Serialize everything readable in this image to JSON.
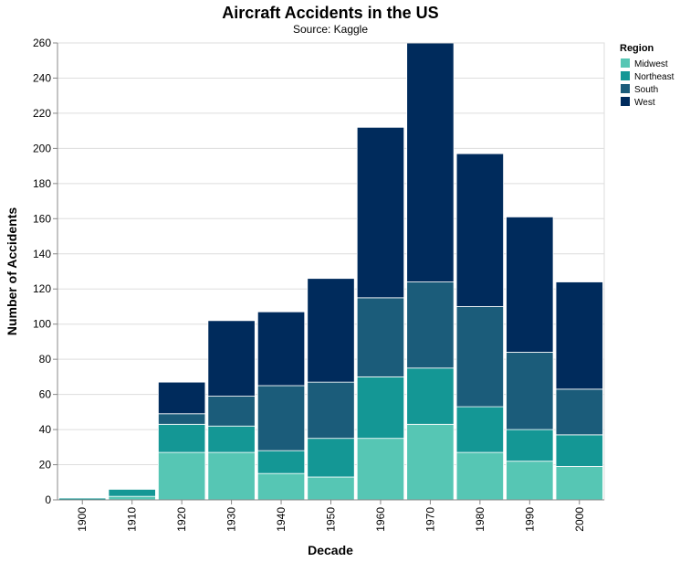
{
  "chart_data": {
    "type": "bar",
    "stacked": true,
    "title": "Aircraft Accidents in the US",
    "subtitle": "Source: Kaggle",
    "xlabel": "Decade",
    "ylabel": "Number of Accidents",
    "ylim": [
      0,
      260
    ],
    "yticks": [
      0,
      20,
      40,
      60,
      80,
      100,
      120,
      140,
      160,
      180,
      200,
      220,
      240,
      260
    ],
    "grid": true,
    "legend": {
      "title": "Region",
      "placement": "right"
    },
    "categories": [
      "1900",
      "1910",
      "1920",
      "1930",
      "1940",
      "1950",
      "1960",
      "1970",
      "1980",
      "1990",
      "2000"
    ],
    "series": [
      {
        "name": "Midwest",
        "color": "#56c6b4",
        "values": [
          0,
          2,
          27,
          27,
          15,
          13,
          35,
          43,
          27,
          22,
          19
        ]
      },
      {
        "name": "Northeast",
        "color": "#149795",
        "values": [
          1,
          4,
          16,
          15,
          13,
          22,
          35,
          32,
          26,
          18,
          18
        ]
      },
      {
        "name": "South",
        "color": "#1b5c7a",
        "values": [
          0,
          0,
          6,
          17,
          37,
          32,
          45,
          49,
          57,
          44,
          26
        ]
      },
      {
        "name": "West",
        "color": "#002b5c",
        "values": [
          0,
          0,
          18,
          43,
          42,
          59,
          97,
          136,
          87,
          77,
          61
        ]
      }
    ]
  }
}
